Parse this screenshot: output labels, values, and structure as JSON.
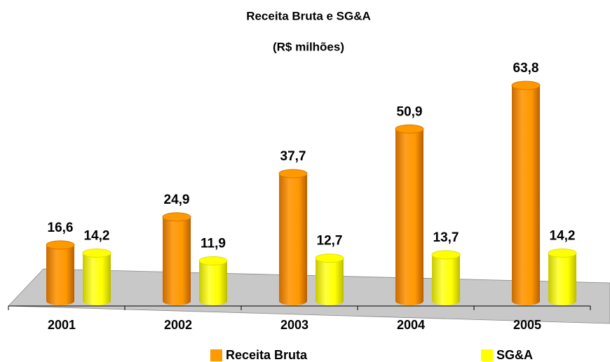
{
  "chart_data": {
    "type": "bar3d",
    "title": "Receita Bruta e SG&A",
    "subtitle": "(R$ milhões)",
    "categories": [
      "2001",
      "2002",
      "2003",
      "2004",
      "2005"
    ],
    "series": [
      {
        "name": "Receita Bruta",
        "color": "#ff9900",
        "values": [
          16.6,
          24.9,
          37.7,
          50.9,
          63.8
        ],
        "value_labels": [
          "16,6",
          "24,9",
          "37,7",
          "50,9",
          "63,8"
        ]
      },
      {
        "name": "SG&A",
        "color": "#ffff00",
        "values": [
          14.2,
          11.9,
          12.7,
          13.7,
          14.2
        ],
        "value_labels": [
          "14,2",
          "11,9",
          "12,7",
          "13,7",
          "14,2"
        ]
      }
    ],
    "legend": "bottom"
  }
}
